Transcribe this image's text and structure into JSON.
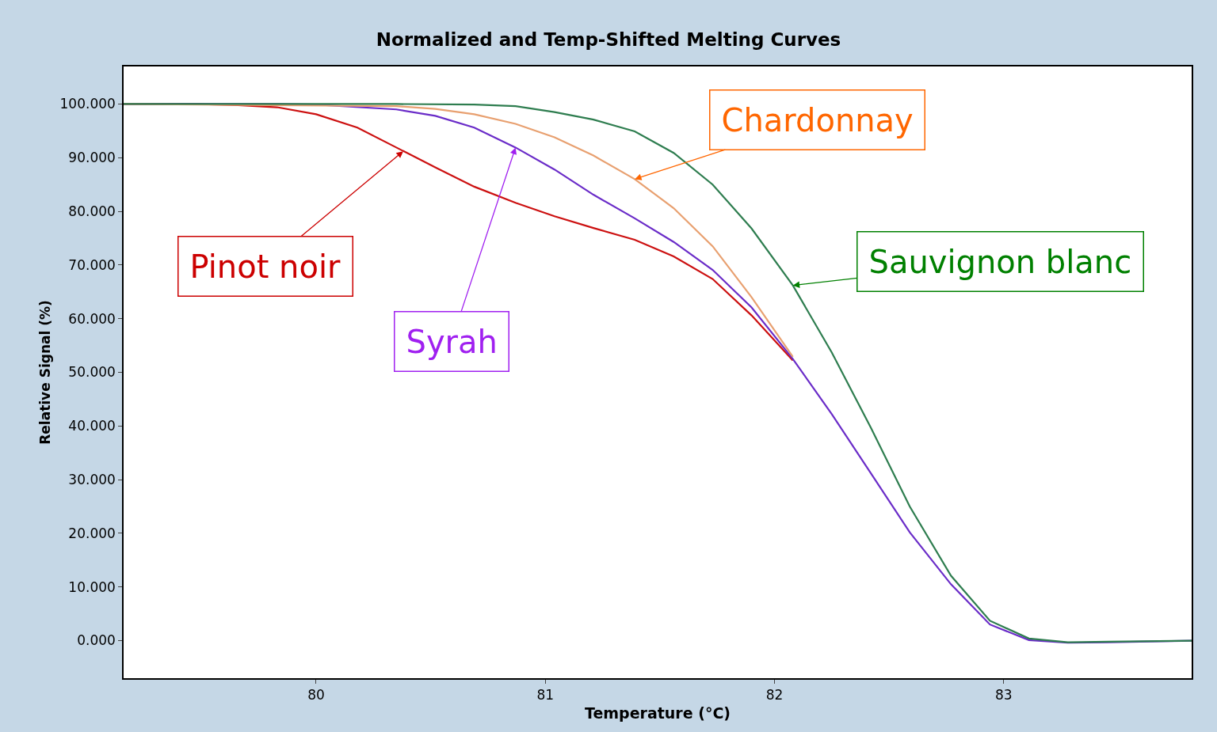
{
  "chart_data": {
    "type": "line",
    "title": "Normalized and Temp-Shifted Melting Curves",
    "xlabel": "Temperature (°C)",
    "ylabel": "Relative Signal (%)",
    "xlim": [
      79.16,
      83.82
    ],
    "xticks": [
      80,
      81,
      82,
      83
    ],
    "ylim": [
      -7,
      107
    ],
    "yticks": [
      {
        "value": 0,
        "label": "0.000"
      },
      {
        "value": 10,
        "label": "10.000"
      },
      {
        "value": 20,
        "label": "20.000"
      },
      {
        "value": 30,
        "label": "30.000"
      },
      {
        "value": 40,
        "label": "40.000"
      },
      {
        "value": 50,
        "label": "50.000"
      },
      {
        "value": 60,
        "label": "60.000"
      },
      {
        "value": 70,
        "label": "70.000"
      },
      {
        "value": 80,
        "label": "80.000"
      },
      {
        "value": 90,
        "label": "90.000"
      },
      {
        "value": 100,
        "label": "100.000"
      }
    ],
    "marker": "none",
    "line_style": "solid",
    "series": [
      {
        "color": "#cc1010",
        "x": [
          79.16,
          79.49,
          79.66,
          79.83,
          80.0,
          80.18,
          80.35,
          80.52,
          80.69,
          80.87,
          81.04,
          81.21,
          81.39,
          81.56,
          81.73,
          81.9,
          82.08
        ],
        "values": [
          100,
          100,
          99.8,
          99.4,
          98.1,
          95.6,
          91.9,
          88.2,
          84.6,
          81.6,
          79.1,
          76.9,
          74.7,
          71.6,
          67.4,
          60.6,
          52.2
        ]
      },
      {
        "color": "#6a2cc8",
        "x": [
          79.16,
          79.83,
          80.0,
          80.35,
          80.52,
          80.69,
          80.87,
          81.04,
          81.21,
          81.39,
          81.56,
          81.73,
          81.9,
          82.08,
          82.25,
          82.42,
          82.59,
          82.77,
          82.94,
          83.11,
          83.28,
          83.46,
          83.82
        ],
        "values": [
          100,
          100,
          99.9,
          99.0,
          97.8,
          95.6,
          91.9,
          87.8,
          83.1,
          78.7,
          74.3,
          69.1,
          62.1,
          52.5,
          42.2,
          31.2,
          20.2,
          10.5,
          3.0,
          0.1,
          -0.4,
          -0.3,
          0.0
        ]
      },
      {
        "color": "#e8a070",
        "x": [
          79.16,
          80.35,
          80.52,
          80.69,
          80.87,
          81.04,
          81.21,
          81.39,
          81.56,
          81.73,
          81.9,
          82.08
        ],
        "values": [
          100,
          99.6,
          99.1,
          98.1,
          96.3,
          93.8,
          90.4,
          86.0,
          80.6,
          73.5,
          64.0,
          52.9
        ]
      },
      {
        "color": "#2e7d4f",
        "x": [
          79.16,
          80.35,
          80.69,
          80.87,
          81.04,
          81.21,
          81.39,
          81.56,
          81.73,
          81.9,
          82.08,
          82.25,
          82.42,
          82.59,
          82.77,
          82.94,
          83.11,
          83.28,
          83.46,
          83.82
        ],
        "values": [
          100,
          100,
          99.9,
          99.6,
          98.5,
          97.1,
          94.9,
          90.9,
          85.0,
          76.8,
          66.2,
          53.7,
          39.7,
          25.0,
          12.1,
          3.7,
          0.4,
          -0.3,
          -0.2,
          0.0
        ]
      }
    ],
    "annotations": [
      {
        "text": "Pinot noir",
        "x": 80.38,
        "y": 91.2
      },
      {
        "text": "Syrah",
        "x": 80.87,
        "y": 91.9
      },
      {
        "text": "Chardonnay",
        "x": 81.39,
        "y": 86.0
      },
      {
        "text": "Sauvignon blanc",
        "x": 82.08,
        "y": 66.2
      }
    ]
  }
}
